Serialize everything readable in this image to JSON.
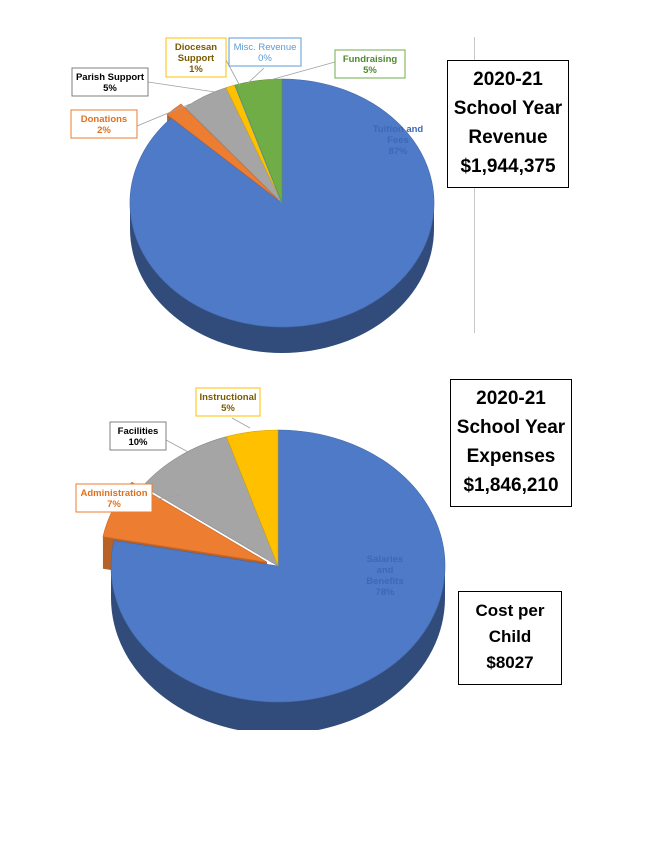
{
  "charts": {
    "revenue_box": {
      "line1": "2020-21",
      "line2": "School Year",
      "line3": "Revenue",
      "line4": "$1,944,375"
    },
    "expense_box": {
      "line1": "2020-21",
      "line2": "School Year",
      "line3": "Expenses",
      "line4": "$1,846,210"
    },
    "cost_box": {
      "line1": "Cost per",
      "line2": "Child",
      "line3": "$8027"
    }
  },
  "chart_data": [
    {
      "type": "pie",
      "title": "",
      "slices": [
        {
          "label": "Tuition and Fees",
          "value": 87,
          "percent_label": "87%",
          "color": "#4f7ac7"
        },
        {
          "label": "Donations",
          "value": 2,
          "percent_label": "2%",
          "color": "#ed7d31"
        },
        {
          "label": "Parish Support",
          "value": 5,
          "percent_label": "5%",
          "color": "#a5a5a5"
        },
        {
          "label": "Diocesan Support",
          "value": 1,
          "percent_label": "1%",
          "color": "#ffc000"
        },
        {
          "label": "Misc. Revenue",
          "value": 0,
          "percent_label": "0%",
          "color": "#5b9bd5"
        },
        {
          "label": "Fundraising",
          "value": 5,
          "percent_label": "5%",
          "color": "#70ad47"
        }
      ]
    },
    {
      "type": "pie",
      "title": "",
      "slices": [
        {
          "label": "Salaries and Benefits",
          "value": 78,
          "percent_label": "78%",
          "color": "#4f7ac7"
        },
        {
          "label": "Administration",
          "value": 7,
          "percent_label": "7%",
          "color": "#ed7d31"
        },
        {
          "label": "Facilities",
          "value": 10,
          "percent_label": "10%",
          "color": "#a5a5a5"
        },
        {
          "label": "Instructional",
          "value": 5,
          "percent_label": "5%",
          "color": "#ffc000"
        }
      ]
    }
  ]
}
